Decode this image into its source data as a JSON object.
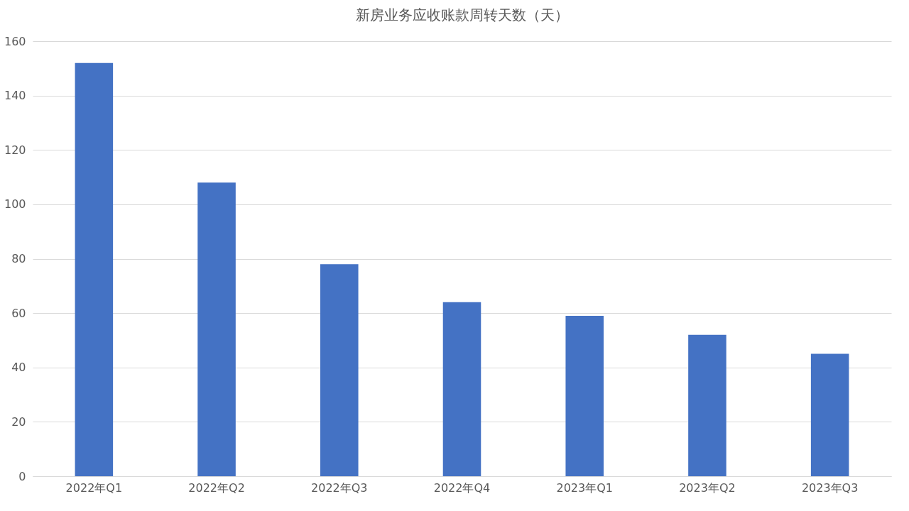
{
  "chart_data": {
    "type": "bar",
    "title": "新房业务应收账款周转天数（天）",
    "categories": [
      "2022年Q1",
      "2022年Q2",
      "2022年Q3",
      "2022年Q4",
      "2023年Q1",
      "2023年Q2",
      "2023年Q3"
    ],
    "series": [
      {
        "color": "#4472c4",
        "values": [
          152,
          108,
          78,
          64,
          59,
          52,
          45
        ]
      }
    ],
    "ylim": [
      0,
      160
    ],
    "yticks": [
      0,
      20,
      40,
      60,
      80,
      100,
      120,
      140,
      160
    ],
    "grid": "y",
    "legend": false
  }
}
